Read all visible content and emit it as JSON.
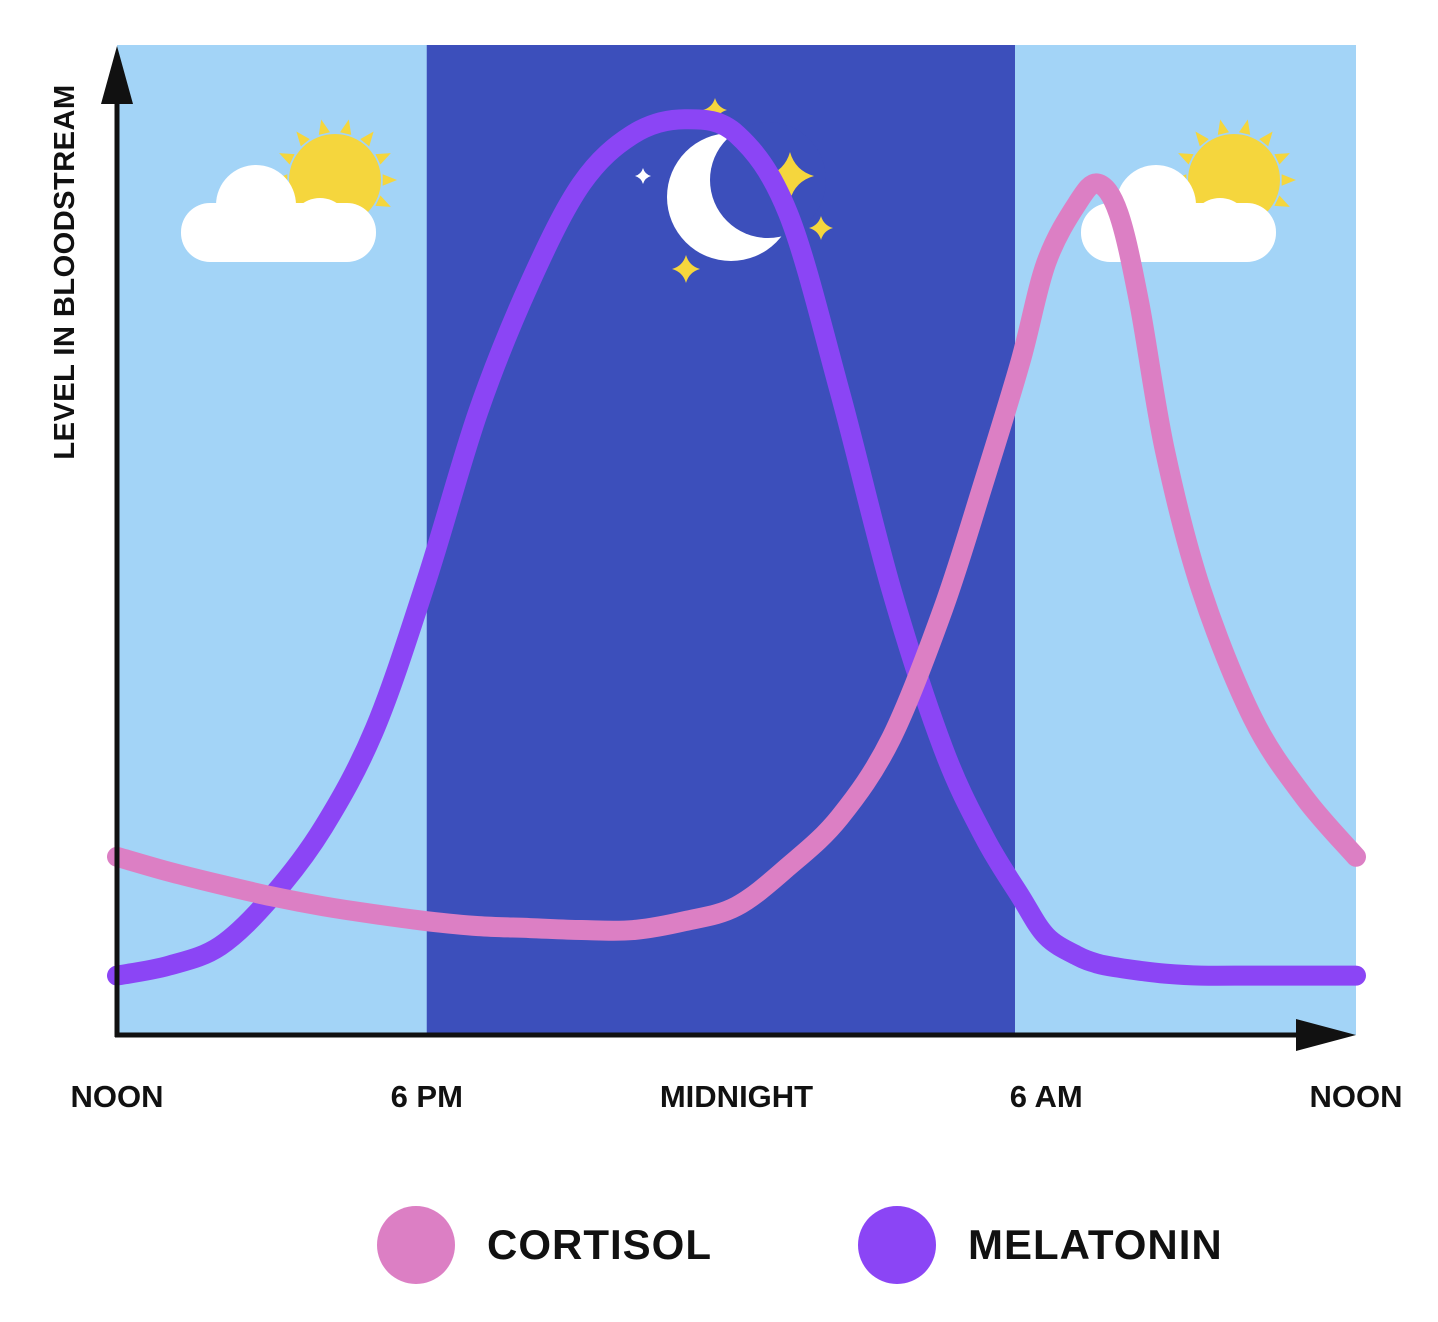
{
  "chart_data": {
    "type": "line",
    "title": "",
    "ylabel": "LEVEL IN BLOODSTREAM",
    "xlabel": "",
    "x_ticks": [
      {
        "label": "NOON",
        "hour": 12
      },
      {
        "label": "6 PM",
        "hour": 18
      },
      {
        "label": "MIDNIGHT",
        "hour": 24
      },
      {
        "label": "6 AM",
        "hour": 30
      },
      {
        "label": "NOON",
        "hour": 36
      }
    ],
    "xlim": [
      12,
      36
    ],
    "ylim": [
      0,
      100
    ],
    "night_band": {
      "from": 18,
      "to": 30
    },
    "series": [
      {
        "name": "CORTISOL",
        "color": "#dc7fc4",
        "x": [
          12,
          13,
          14,
          15,
          16,
          17,
          18,
          19,
          20,
          21,
          22,
          23,
          24,
          25,
          26,
          27,
          28,
          28.8,
          29.5,
          30,
          30.6,
          31,
          31.4,
          31.8,
          32.3,
          33,
          34,
          35,
          36
        ],
        "y": [
          18,
          16.5,
          15.2,
          14,
          13,
          12.2,
          11.5,
          11,
          10.8,
          10.6,
          10.6,
          11.5,
          13,
          17,
          22,
          30,
          43,
          56,
          68,
          78,
          84,
          86,
          83,
          74,
          59,
          45,
          32,
          24,
          18
        ]
      },
      {
        "name": "MELATONIN",
        "color": "#8b45f5",
        "x": [
          12,
          13,
          14,
          15,
          16,
          17,
          18,
          19,
          20,
          21,
          22,
          23,
          24,
          25,
          26,
          27,
          28,
          28.8,
          29.5,
          30,
          30.6,
          31,
          31.4,
          31.8,
          32.3,
          33,
          34,
          35,
          36
        ],
        "y": [
          6,
          7,
          9,
          14,
          21,
          31,
          46,
          63,
          76,
          86,
          91,
          92.5,
          91,
          83,
          65,
          45,
          29,
          20,
          14,
          10,
          8,
          7.2,
          6.8,
          6.5,
          6.2,
          6,
          6,
          6,
          6
        ]
      }
    ],
    "legend": [
      {
        "label": "CORTISOL",
        "color": "#dc7fc4"
      },
      {
        "label": "MELATONIN",
        "color": "#8b45f5"
      }
    ],
    "grid": false,
    "legend_position": "bottom-center",
    "day_icon": "sun-behind-cloud-icon",
    "night_icon": "crescent-moon-stars-icon"
  },
  "colors": {
    "day_background": "#a3d4f7",
    "night_background": "#3c4fbb",
    "axis": "#111111",
    "sun": "#f5d63d",
    "cloud": "#ffffff",
    "star": "#f5d63d"
  }
}
